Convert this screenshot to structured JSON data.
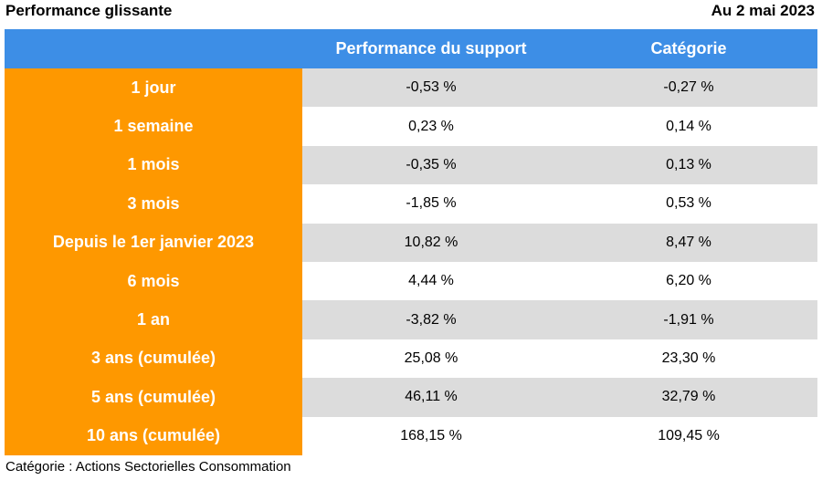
{
  "header": {
    "title": "Performance glissante",
    "date": "Au 2 mai 2023"
  },
  "colors": {
    "header_bg": "#3d8ee6",
    "rowhead_bg": "#fe9800",
    "shade_bg": "#dcdcdc"
  },
  "chart_data": {
    "type": "table",
    "columns": [
      "",
      "Performance du support",
      "Catégorie"
    ],
    "rows": [
      {
        "label": "1 jour",
        "support": "-0,53 %",
        "categorie": "-0,27 %"
      },
      {
        "label": "1 semaine",
        "support": "0,23 %",
        "categorie": "0,14 %"
      },
      {
        "label": "1 mois",
        "support": "-0,35 %",
        "categorie": "0,13 %"
      },
      {
        "label": "3 mois",
        "support": "-1,85 %",
        "categorie": "0,53 %"
      },
      {
        "label": "Depuis le 1er janvier 2023",
        "support": "10,82 %",
        "categorie": "8,47 %"
      },
      {
        "label": "6 mois",
        "support": "4,44 %",
        "categorie": "6,20 %"
      },
      {
        "label": "1 an",
        "support": "-3,82 %",
        "categorie": "-1,91 %"
      },
      {
        "label": "3 ans (cumulée)",
        "support": "25,08 %",
        "categorie": "23,30 %"
      },
      {
        "label": "5 ans (cumulée)",
        "support": "46,11 %",
        "categorie": "32,79 %"
      },
      {
        "label": "10 ans (cumulée)",
        "support": "168,15 %",
        "categorie": "109,45 %"
      }
    ]
  },
  "footnote": "Catégorie : Actions Sectorielles Consommation"
}
